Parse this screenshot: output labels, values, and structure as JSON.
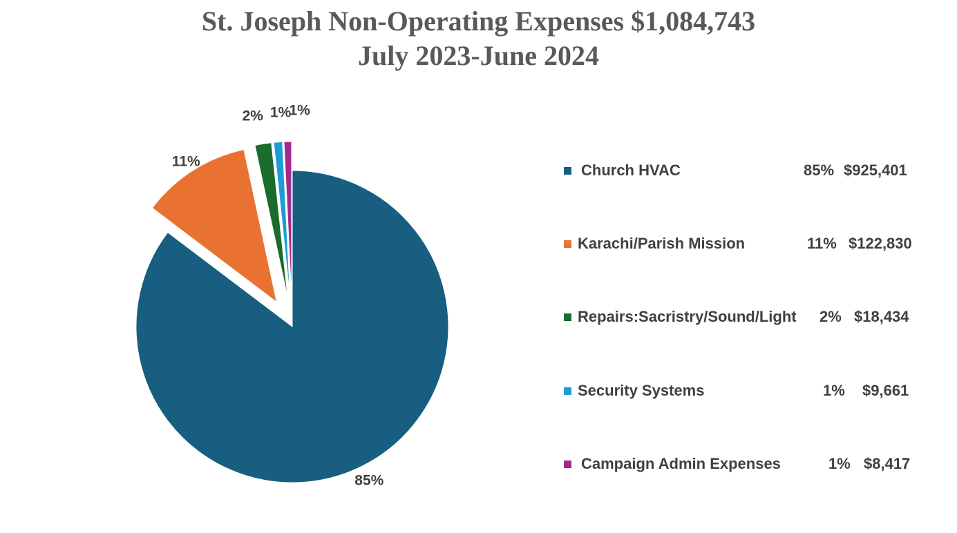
{
  "title_line1": "St. Joseph Non-Operating Expenses $1,084,743",
  "title_line2": "July 2023-June 2024",
  "chart_data": {
    "type": "pie",
    "title": "St. Joseph Non-Operating Expenses $1,084,743 July 2023-June 2024",
    "total": 1084743,
    "legend_position": "right",
    "slices": [
      {
        "label": "Church HVAC",
        "pct_label": "85%",
        "amount_label": "$925,401",
        "value": 925401,
        "color": "#175E80",
        "exploded": false
      },
      {
        "label": "Karachi/Parish Mission",
        "pct_label": "11%",
        "amount_label": "$122,830",
        "value": 122830,
        "color": "#E97232",
        "exploded": true
      },
      {
        "label": "Repairs:Sacristry/Sound/Light",
        "pct_label": "2%",
        "amount_label": "$18,434",
        "value": 18434,
        "color": "#1B6B2A",
        "exploded": true
      },
      {
        "label": "Security Systems",
        "pct_label": "1%",
        "amount_label": "$9,661",
        "value": 9661,
        "color": "#1E9CD6",
        "exploded": true
      },
      {
        "label": "Campaign Admin Expenses",
        "pct_label": "1%",
        "amount_label": "$8,417",
        "value": 8417,
        "color": "#A4298F",
        "exploded": true
      }
    ]
  }
}
